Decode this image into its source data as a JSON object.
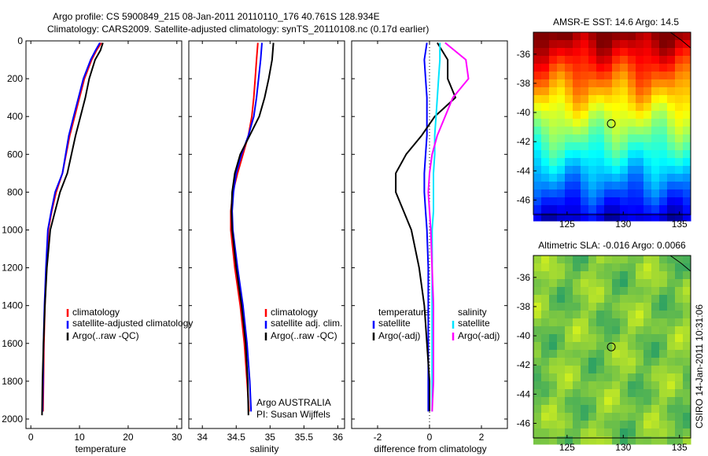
{
  "header": {
    "line1": "Argo profile: CS 5900849_215 08-Jan-2011 20110110_176 40.761S 128.934E",
    "line2": "Climatology: CARS2009. Satellite-adjusted climatology: synTS_20110108.nc (0.17d earlier)"
  },
  "side_label": "CSIRO 14-Jan-2011 10:31:06",
  "colors": {
    "clim": "#ff0000",
    "sat": "#0000ff",
    "argo": "#000000",
    "sal_sat": "#00e5ff",
    "sal_argo": "#ff00ff"
  },
  "chart_data": [
    {
      "type": "line",
      "xlabel": "temperature",
      "xlim": [
        -1,
        31
      ],
      "ylim": [
        2050,
        0
      ],
      "xticks": [
        0,
        10,
        20,
        30
      ],
      "yticks": [
        0,
        200,
        400,
        600,
        800,
        1000,
        1200,
        1400,
        1600,
        1800,
        2000
      ],
      "legend": [
        "climatology",
        "satellite-adjusted climatology",
        "Argo(..raw -QC)"
      ],
      "series": [
        {
          "name": "climatology",
          "color": "#ff0000",
          "x": [
            14.5,
            13.5,
            12.5,
            11.0,
            10.0,
            9.0,
            8.0,
            6.5,
            5.2,
            4.3,
            3.6,
            3.2,
            2.9,
            2.7,
            2.6,
            2.5
          ],
          "y": [
            10,
            50,
            100,
            200,
            300,
            400,
            500,
            700,
            800,
            900,
            1000,
            1200,
            1400,
            1600,
            1800,
            1960
          ]
        },
        {
          "name": "satellite-adjusted climatology",
          "color": "#0000ff",
          "x": [
            14.2,
            13.3,
            12.3,
            10.8,
            9.8,
            8.8,
            7.8,
            6.5,
            5.0,
            4.2,
            3.5,
            3.1,
            2.8,
            2.6,
            2.5,
            2.4
          ],
          "y": [
            10,
            50,
            100,
            200,
            300,
            400,
            500,
            700,
            800,
            900,
            1000,
            1200,
            1400,
            1600,
            1800,
            1960
          ]
        },
        {
          "name": "Argo(..raw -QC)",
          "color": "#000000",
          "x": [
            14.8,
            14.3,
            13.2,
            12.0,
            11.2,
            10.2,
            9.2,
            7.5,
            6.0,
            5.0,
            4.0,
            3.3,
            2.9,
            2.6,
            2.4,
            2.3
          ],
          "y": [
            10,
            50,
            100,
            200,
            300,
            400,
            500,
            700,
            800,
            900,
            1000,
            1200,
            1400,
            1600,
            1800,
            1980
          ]
        }
      ]
    },
    {
      "type": "line",
      "xlabel": "salinity",
      "xlim": [
        33.8,
        36.1
      ],
      "ylim": [
        2050,
        0
      ],
      "xticks": [
        34,
        34.5,
        35,
        35.5,
        36
      ],
      "yticks": [
        0,
        200,
        400,
        600,
        800,
        1000,
        1200,
        1400,
        1600,
        1800,
        2000
      ],
      "legend": [
        "climatology",
        "satellite adj. clim.",
        "Argo(..raw -QC)"
      ],
      "annotation": [
        "Argo AUSTRALIA",
        "PI: Susan Wijffels"
      ],
      "series": [
        {
          "name": "climatology",
          "color": "#ff0000",
          "x": [
            34.82,
            34.8,
            34.78,
            34.76,
            34.73,
            34.68,
            34.6,
            34.52,
            34.45,
            34.42,
            34.42,
            34.48,
            34.56,
            34.62,
            34.66,
            34.69
          ],
          "y": [
            10,
            100,
            200,
            300,
            400,
            500,
            600,
            700,
            800,
            900,
            1000,
            1200,
            1400,
            1600,
            1800,
            1960
          ]
        },
        {
          "name": "satellite adj. clim.",
          "color": "#0000ff",
          "x": [
            34.88,
            34.86,
            34.83,
            34.8,
            34.76,
            34.68,
            34.58,
            34.5,
            34.46,
            34.44,
            34.45,
            34.52,
            34.6,
            34.66,
            34.7,
            34.72
          ],
          "y": [
            10,
            100,
            200,
            300,
            400,
            500,
            600,
            700,
            800,
            900,
            1000,
            1200,
            1400,
            1600,
            1800,
            1960
          ]
        },
        {
          "name": "Argo(..raw -QC)",
          "color": "#000000",
          "x": [
            35.05,
            35.03,
            34.98,
            34.92,
            34.84,
            34.7,
            34.56,
            34.48,
            34.44,
            34.43,
            34.44,
            34.5,
            34.58,
            34.64,
            34.67,
            34.68
          ],
          "y": [
            10,
            100,
            200,
            300,
            400,
            500,
            600,
            700,
            800,
            900,
            1000,
            1200,
            1400,
            1600,
            1800,
            1980
          ]
        }
      ]
    },
    {
      "type": "line",
      "xlabel": "difference from climatology",
      "xlim": [
        -3,
        3
      ],
      "ylim": [
        2050,
        0
      ],
      "xticks": [
        -2,
        0,
        2
      ],
      "yticks": [
        0,
        200,
        400,
        600,
        800,
        1000,
        1200,
        1400,
        1600,
        1800,
        2000
      ],
      "legend_headers": [
        "temperature",
        "salinity"
      ],
      "legend": [
        "satellite",
        "Argo(-adj)",
        "satellite",
        "Argo(-adj)"
      ],
      "series": [
        {
          "name": "temperature satellite",
          "color": "#0000ff",
          "x": [
            -0.1,
            -0.2,
            -0.15,
            -0.1,
            -0.1,
            -0.1,
            -0.15,
            -0.2,
            -0.2,
            -0.15,
            -0.1,
            -0.05,
            -0.05,
            -0.05,
            -0.05,
            -0.05
          ],
          "y": [
            10,
            100,
            200,
            300,
            400,
            500,
            600,
            700,
            800,
            900,
            1000,
            1200,
            1400,
            1600,
            1800,
            1960
          ]
        },
        {
          "name": "temperature Argo(-adj)",
          "color": "#000000",
          "x": [
            0.3,
            0.7,
            0.7,
            1.0,
            0.2,
            -0.3,
            -0.9,
            -1.3,
            -1.3,
            -1.0,
            -0.7,
            -0.4,
            -0.2,
            -0.1,
            0.0,
            0.0
          ],
          "y": [
            10,
            100,
            200,
            300,
            400,
            500,
            600,
            700,
            800,
            900,
            1000,
            1200,
            1400,
            1600,
            1800,
            1960
          ]
        },
        {
          "name": "salinity satellite",
          "color": "#00e5ff",
          "x": [
            0.4,
            0.4,
            0.35,
            0.3,
            0.25,
            0.2,
            0.2,
            0.15,
            0.15,
            0.15,
            0.1,
            0.1,
            0.1,
            0.1,
            0.1,
            0.1
          ],
          "y": [
            10,
            100,
            200,
            300,
            400,
            500,
            600,
            700,
            800,
            900,
            1000,
            1200,
            1400,
            1600,
            1800,
            1960
          ]
        },
        {
          "name": "salinity Argo(-adj)",
          "color": "#ff00ff",
          "x": [
            0.6,
            1.4,
            1.5,
            0.9,
            0.6,
            0.3,
            0.1,
            0.0,
            -0.05,
            0.0,
            0.05,
            0.1,
            0.15,
            0.15,
            0.15,
            0.1
          ],
          "y": [
            10,
            100,
            200,
            300,
            400,
            500,
            600,
            700,
            800,
            900,
            1000,
            1200,
            1400,
            1600,
            1800,
            1960
          ]
        }
      ]
    },
    {
      "type": "heatmap",
      "title": "AMSR-E SST: 14.6  Argo: 14.5",
      "xlim": [
        122,
        136
      ],
      "ylim": [
        -47,
        -34.5
      ],
      "xticks": [
        125,
        130,
        135
      ],
      "yticks": [
        -36,
        -38,
        -40,
        -42,
        -44,
        -46
      ],
      "marker": [
        128.934,
        -40.761
      ],
      "palette": "jet"
    },
    {
      "type": "heatmap",
      "title": "Altimetric SLA: -0.016  Argo: 0.0066",
      "xlim": [
        122,
        136
      ],
      "ylim": [
        -47,
        -34.5
      ],
      "xticks": [
        125,
        130,
        135
      ],
      "yticks": [
        -36,
        -38,
        -40,
        -42,
        -44,
        -46
      ],
      "marker": [
        128.934,
        -40.761
      ],
      "palette": "green"
    }
  ]
}
